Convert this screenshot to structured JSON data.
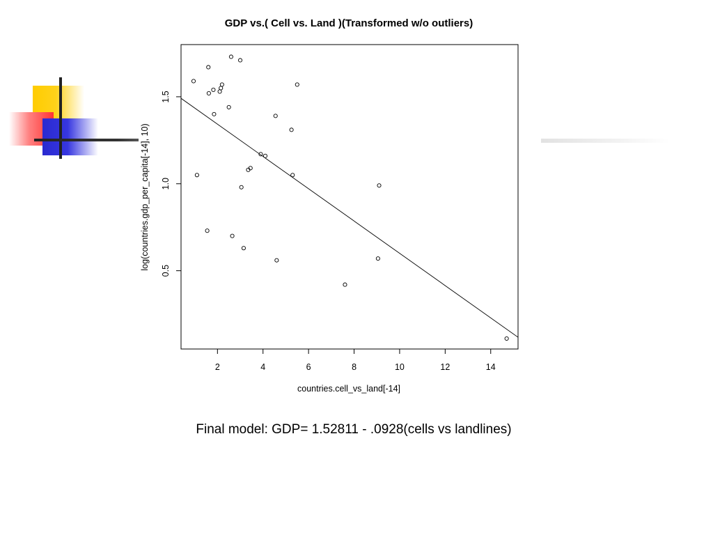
{
  "chart_data": {
    "type": "scatter",
    "title": "GDP vs.( Cell vs. Land )(Transformed w/o outliers)",
    "xlabel": "countries.cell_vs_land[-14]",
    "ylabel": "log(countries.gdp_per_capita[-14], 10)",
    "xlim": [
      0.4,
      15.2
    ],
    "ylim": [
      0.05,
      1.8
    ],
    "xticks": [
      2,
      4,
      6,
      8,
      10,
      12,
      14
    ],
    "yticks": [
      0.5,
      1.0,
      1.5
    ],
    "ytick_labels": [
      "0.5",
      "1.0",
      "1.5"
    ],
    "grid": false,
    "series": [
      {
        "marker": "open-circle",
        "x": [
          0.95,
          1.1,
          1.55,
          1.6,
          1.62,
          1.82,
          1.85,
          2.1,
          2.15,
          2.2,
          2.5,
          2.6,
          2.65,
          3.0,
          3.05,
          3.15,
          3.35,
          3.45,
          3.9,
          4.1,
          4.55,
          4.6,
          5.25,
          5.3,
          5.5,
          7.6,
          9.05,
          9.1,
          14.7
        ],
        "y": [
          1.59,
          1.05,
          0.73,
          1.67,
          1.52,
          1.54,
          1.4,
          1.53,
          1.55,
          1.57,
          1.44,
          1.73,
          0.7,
          1.71,
          0.98,
          0.63,
          1.08,
          1.09,
          1.17,
          1.16,
          1.39,
          0.56,
          1.31,
          1.05,
          1.57,
          0.42,
          0.57,
          0.99,
          0.11
        ]
      }
    ],
    "fit_line": {
      "intercept": 1.52811,
      "slope": -0.0928,
      "x_range": [
        0.4,
        15.2
      ]
    }
  },
  "caption": "Final model: GDP= 1.52811 - .0928(cells vs landlines)"
}
